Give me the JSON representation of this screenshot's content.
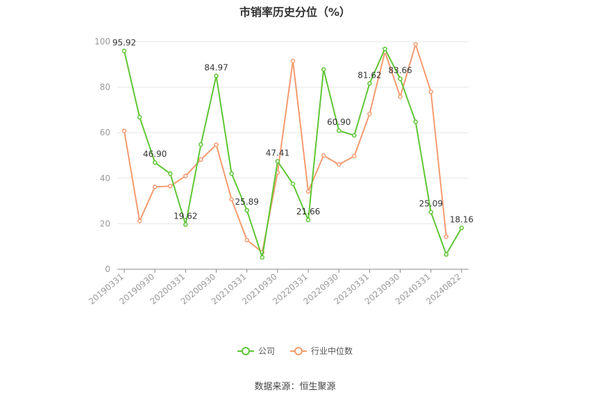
{
  "colors": {
    "company": "#5ec634",
    "industry": "#f59a6f",
    "grid": "#e6e6e6",
    "axis": "#888888"
  },
  "chart_data": {
    "type": "line",
    "title": "市销率历史分位（%）",
    "x": [
      "20190331",
      "20190630",
      "20190930",
      "20191231",
      "20200331",
      "20200630",
      "20200930",
      "20201231",
      "20210331",
      "20210630",
      "20210930",
      "20211231",
      "20220331",
      "20220630",
      "20220930",
      "20221231",
      "20230331",
      "20230630",
      "20230930",
      "20231231",
      "20240331",
      "20240630",
      "20240822"
    ],
    "x_tick_labels": [
      "20190331",
      "20190930",
      "20200331",
      "20200930",
      "20210331",
      "20210930",
      "20220331",
      "20220930",
      "20230331",
      "20230930",
      "20240331",
      "20240822"
    ],
    "ylim": [
      0,
      100
    ],
    "y_ticks": [
      0,
      20,
      40,
      60,
      80,
      100
    ],
    "grid": true,
    "legend_position": "bottom",
    "series": [
      {
        "name": "公司",
        "values": [
          95.92,
          66.8,
          46.9,
          42.0,
          19.62,
          54.8,
          84.97,
          42.0,
          25.89,
          5.2,
          47.41,
          37.5,
          21.66,
          87.8,
          60.9,
          58.8,
          81.62,
          96.8,
          83.66,
          64.8,
          25.09,
          6.5,
          18.16
        ],
        "labels": [
          "95.92",
          null,
          "46.90",
          null,
          "19.62",
          null,
          "84.97",
          null,
          "25.89",
          null,
          "47.41",
          null,
          "21.66",
          null,
          "60.90",
          null,
          "81.62",
          null,
          "83.66",
          null,
          "25.09",
          null,
          "18.16"
        ]
      },
      {
        "name": "行业中位数",
        "values": [
          60.8,
          21.2,
          36.2,
          36.5,
          41.0,
          48.2,
          54.7,
          30.7,
          12.8,
          7.5,
          42.5,
          91.5,
          34.2,
          50.0,
          46.0,
          49.7,
          68.3,
          95.5,
          75.8,
          98.8,
          78.0,
          14.3,
          null
        ]
      }
    ]
  },
  "legend": {
    "company_label": "公司",
    "industry_label": "行业中位数"
  },
  "source_text": "数据来源：恒生聚源"
}
